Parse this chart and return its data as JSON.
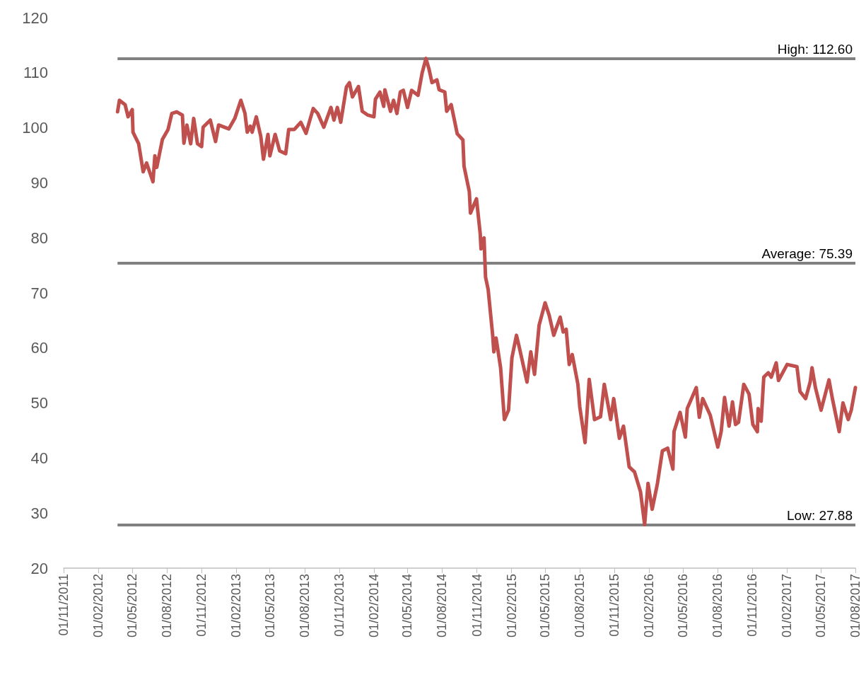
{
  "chart_data": {
    "type": "line",
    "x": [
      "2012-03-23",
      "2012-03-28",
      "2012-04-12",
      "2012-04-20",
      "2012-05-01",
      "2012-05-03",
      "2012-05-18",
      "2012-05-30",
      "2012-06-08",
      "2012-06-25",
      "2012-06-30",
      "2012-07-05",
      "2012-07-20",
      "2012-08-04",
      "2012-08-14",
      "2012-08-27",
      "2012-09-11",
      "2012-09-15",
      "2012-09-23",
      "2012-10-03",
      "2012-10-11",
      "2012-10-21",
      "2012-11-01",
      "2012-11-05",
      "2012-11-24",
      "2012-12-08",
      "2012-12-16",
      "2013-01-12",
      "2013-01-28",
      "2013-02-13",
      "2013-02-24",
      "2013-03-02",
      "2013-03-10",
      "2013-03-15",
      "2013-03-26",
      "2013-04-07",
      "2013-04-14",
      "2013-04-26",
      "2013-05-01",
      "2013-05-15",
      "2013-05-27",
      "2013-06-12",
      "2013-06-20",
      "2013-07-05",
      "2013-07-22",
      "2013-08-05",
      "2013-08-24",
      "2013-09-05",
      "2013-09-21",
      "2013-10-10",
      "2013-10-18",
      "2013-10-27",
      "2013-11-05",
      "2013-11-20",
      "2013-11-28",
      "2013-12-06",
      "2013-12-22",
      "2014-01-01",
      "2014-01-16",
      "2014-02-01",
      "2014-02-05",
      "2014-02-17",
      "2014-02-27",
      "2014-03-02",
      "2014-03-17",
      "2014-03-25",
      "2014-04-03",
      "2014-04-12",
      "2014-04-20",
      "2014-05-01",
      "2014-05-12",
      "2014-05-29",
      "2014-06-09",
      "2014-06-19",
      "2014-06-27",
      "2014-07-05",
      "2014-07-18",
      "2014-07-24",
      "2014-08-08",
      "2014-08-13",
      "2014-08-25",
      "2014-09-10",
      "2014-09-25",
      "2014-09-28",
      "2014-10-12",
      "2014-10-15",
      "2014-10-31",
      "2014-11-10",
      "2014-11-12",
      "2014-11-20",
      "2014-11-24",
      "2014-12-01",
      "2014-12-13",
      "2014-12-16",
      "2014-12-22",
      "2015-01-03",
      "2015-01-13",
      "2015-01-24",
      "2015-02-02",
      "2015-02-14",
      "2015-02-22",
      "2015-03-14",
      "2015-03-24",
      "2015-04-03",
      "2015-04-15",
      "2015-05-01",
      "2015-05-12",
      "2015-05-24",
      "2015-06-10",
      "2015-06-18",
      "2015-06-26",
      "2015-07-04",
      "2015-07-12",
      "2015-07-27",
      "2015-08-01",
      "2015-08-15",
      "2015-08-26",
      "2015-09-09",
      "2015-09-25",
      "2015-10-05",
      "2015-10-22",
      "2015-10-30",
      "2015-11-14",
      "2015-11-25",
      "2015-12-10",
      "2015-12-24",
      "2016-01-09",
      "2016-01-20",
      "2016-01-29",
      "2016-02-09",
      "2016-02-23",
      "2016-03-07",
      "2016-03-21",
      "2016-04-04",
      "2016-04-07",
      "2016-04-23",
      "2016-05-07",
      "2016-05-12",
      "2016-06-05",
      "2016-06-13",
      "2016-06-22",
      "2016-07-12",
      "2016-08-01",
      "2016-08-10",
      "2016-08-19",
      "2016-08-31",
      "2016-09-09",
      "2016-09-17",
      "2016-09-25",
      "2016-10-09",
      "2016-10-23",
      "2016-11-02",
      "2016-11-14",
      "2016-11-16",
      "2016-11-24",
      "2016-12-01",
      "2016-12-13",
      "2016-12-21",
      "2017-01-03",
      "2017-01-09",
      "2017-02-01",
      "2017-02-27",
      "2017-03-07",
      "2017-03-22",
      "2017-04-03",
      "2017-04-08",
      "2017-04-17",
      "2017-05-02",
      "2017-05-23",
      "2017-06-01",
      "2017-06-19",
      "2017-06-29",
      "2017-07-13",
      "2017-07-21",
      "2017-08-01"
    ],
    "series": [
      {
        "color": "#c0504d",
        "values": [
          102.9,
          105.0,
          104.2,
          102.0,
          103.3,
          99.2,
          97.1,
          92.0,
          93.6,
          90.2,
          94.9,
          92.8,
          97.9,
          99.7,
          102.6,
          102.9,
          102.3,
          97.2,
          100.5,
          97.1,
          101.7,
          97.1,
          96.6,
          100.1,
          101.4,
          97.5,
          100.5,
          99.8,
          101.7,
          105.0,
          102.6,
          99.2,
          100.3,
          99.2,
          102.0,
          98.4,
          94.3,
          98.8,
          94.9,
          98.8,
          95.8,
          95.3,
          99.7,
          99.7,
          101.0,
          99.0,
          103.5,
          102.6,
          100.1,
          103.7,
          101.4,
          103.7,
          101.0,
          107.4,
          108.2,
          105.6,
          107.5,
          103.0,
          102.3,
          102.0,
          105.2,
          106.5,
          103.9,
          106.9,
          103.0,
          105.0,
          102.6,
          106.5,
          106.8,
          103.7,
          106.8,
          105.9,
          110.0,
          112.6,
          110.7,
          108.2,
          108.7,
          106.9,
          106.5,
          103.0,
          104.2,
          98.9,
          97.8,
          93.0,
          88.4,
          84.5,
          87.1,
          80.7,
          78.0,
          80.0,
          72.9,
          70.6,
          62.3,
          59.3,
          61.8,
          56.4,
          47.0,
          48.7,
          58.2,
          62.3,
          60.0,
          53.8,
          59.3,
          55.2,
          64.1,
          68.2,
          65.9,
          62.3,
          65.6,
          62.9,
          63.4,
          57.0,
          58.8,
          53.4,
          49.3,
          42.8,
          54.3,
          47.0,
          47.5,
          53.4,
          47.0,
          50.8,
          43.6,
          45.8,
          38.4,
          37.5,
          33.9,
          27.9,
          35.4,
          30.7,
          35.4,
          41.3,
          41.8,
          38.0,
          44.8,
          48.3,
          43.8,
          49.0,
          52.8,
          47.4,
          50.8,
          47.8,
          42.0,
          44.8,
          51.0,
          45.8,
          50.2,
          46.1,
          46.5,
          53.4,
          51.6,
          46.1,
          44.8,
          49.0,
          46.7,
          54.7,
          55.5,
          54.7,
          57.3,
          54.1,
          57.0,
          56.6,
          52.1,
          50.8,
          53.8,
          56.4,
          52.8,
          48.7,
          54.2,
          50.8,
          44.8,
          50.0,
          47.0,
          48.7,
          52.8
        ]
      }
    ],
    "xlim": [
      "2011-11-01",
      "2017-08-01"
    ],
    "xticks": [
      {
        "value": "2011-11-01",
        "label": "01/11/2011"
      },
      {
        "value": "2012-02-01",
        "label": "01/02/2012"
      },
      {
        "value": "2012-05-01",
        "label": "01/05/2012"
      },
      {
        "value": "2012-08-01",
        "label": "01/08/2012"
      },
      {
        "value": "2012-11-01",
        "label": "01/11/2012"
      },
      {
        "value": "2013-02-01",
        "label": "01/02/2013"
      },
      {
        "value": "2013-05-01",
        "label": "01/05/2013"
      },
      {
        "value": "2013-08-01",
        "label": "01/08/2013"
      },
      {
        "value": "2013-11-01",
        "label": "01/11/2013"
      },
      {
        "value": "2014-02-01",
        "label": "01/02/2014"
      },
      {
        "value": "2014-05-01",
        "label": "01/05/2014"
      },
      {
        "value": "2014-08-01",
        "label": "01/08/2014"
      },
      {
        "value": "2014-11-01",
        "label": "01/11/2014"
      },
      {
        "value": "2015-02-01",
        "label": "01/02/2015"
      },
      {
        "value": "2015-05-01",
        "label": "01/05/2015"
      },
      {
        "value": "2015-08-01",
        "label": "01/08/2015"
      },
      {
        "value": "2015-11-01",
        "label": "01/11/2015"
      },
      {
        "value": "2016-02-01",
        "label": "01/02/2016"
      },
      {
        "value": "2016-05-01",
        "label": "01/05/2016"
      },
      {
        "value": "2016-08-01",
        "label": "01/08/2016"
      },
      {
        "value": "2016-11-01",
        "label": "01/11/2016"
      },
      {
        "value": "2017-02-01",
        "label": "01/02/2017"
      },
      {
        "value": "2017-05-01",
        "label": "01/05/2017"
      },
      {
        "value": "2017-08-01",
        "label": "01/08/2017"
      }
    ],
    "ylim": [
      20,
      120
    ],
    "yticks": [
      20,
      30,
      40,
      50,
      60,
      70,
      80,
      90,
      100,
      110,
      120
    ],
    "grid": false,
    "marker": "none",
    "line_style": "solid",
    "ref_lines": [
      {
        "axis": "y",
        "value": 112.6,
        "label": "High: 112.60",
        "color": "#808080"
      },
      {
        "axis": "y",
        "value": 75.39,
        "label": "Average: 75.39",
        "color": "#808080"
      },
      {
        "axis": "y",
        "value": 27.88,
        "label": "Low: 27.88",
        "color": "#808080"
      }
    ]
  }
}
